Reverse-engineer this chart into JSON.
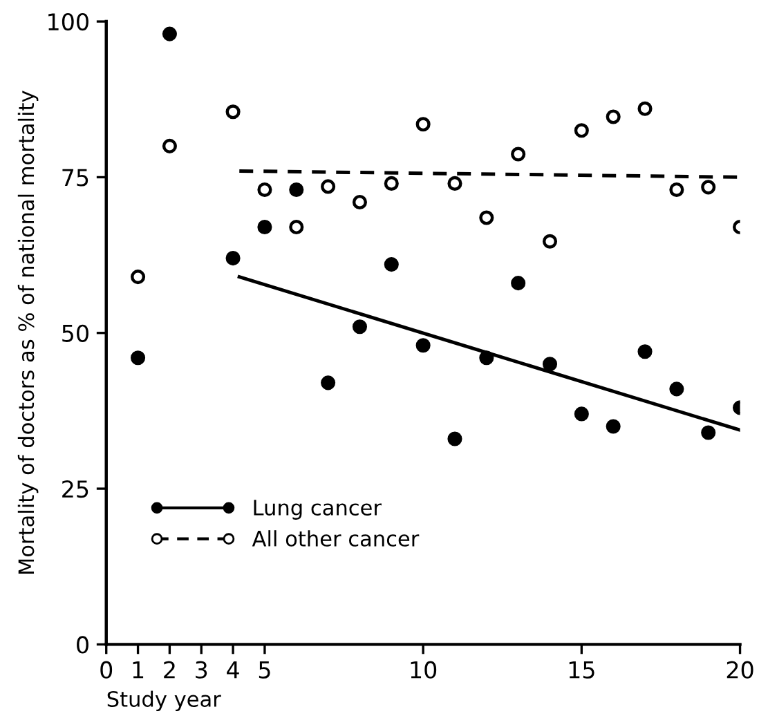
{
  "chart_data": {
    "type": "scatter",
    "xlabel": "Study year",
    "ylabel": "Mortality of doctors as % of national mortality",
    "xlim": [
      0,
      20
    ],
    "ylim": [
      0,
      100
    ],
    "xticks": [
      0,
      1,
      2,
      3,
      4,
      5,
      10,
      15,
      20
    ],
    "yticks": [
      0,
      25,
      50,
      75,
      100
    ],
    "grid": false,
    "legend": "bottom left",
    "series": [
      {
        "name": "Lung cancer",
        "color": "#000000",
        "marker": "circle",
        "x": [
          1,
          2,
          4,
          5,
          6,
          7,
          8,
          9,
          10,
          11,
          12,
          13,
          14,
          15,
          16,
          17,
          18,
          19,
          20
        ],
        "values": [
          46,
          98,
          62,
          67,
          73,
          42,
          51,
          61,
          48,
          33,
          46,
          58,
          45,
          37,
          35,
          47,
          41,
          34,
          38
        ]
      },
      {
        "name": "All other cancer",
        "color": "#ffffff",
        "marker": "circle",
        "x": [
          1,
          2,
          4,
          5,
          6,
          7,
          8,
          9,
          10,
          11,
          12,
          13,
          14,
          15,
          16,
          17,
          18,
          19,
          20
        ],
        "values": [
          59,
          80,
          85.5,
          73,
          67,
          73.5,
          71,
          74,
          83.5,
          74,
          68.5,
          78.7,
          64.7,
          82.5,
          84.7,
          86,
          73,
          73.4,
          67
        ]
      },
      {
        "type": "line",
        "color": "#000000",
        "line_style": "solid",
        "x": [
          4.2,
          20
        ],
        "values": [
          59,
          34.4
        ]
      },
      {
        "type": "line",
        "color": "#000000",
        "line_style": "dashed",
        "x": [
          4.2,
          20
        ],
        "values": [
          76,
          75
        ]
      }
    ]
  }
}
